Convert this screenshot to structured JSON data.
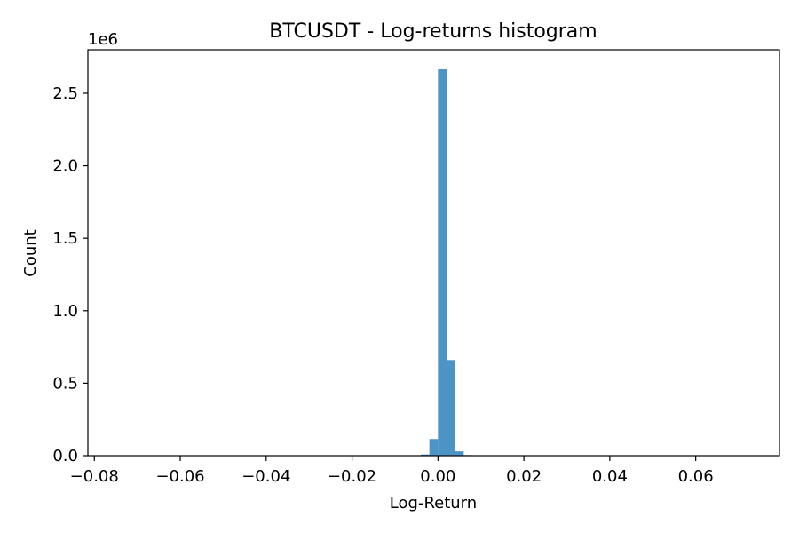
{
  "chart_data": {
    "type": "bar",
    "title": "BTCUSDT - Log-returns histogram",
    "xlabel": "Log-Return",
    "ylabel": "Count",
    "y_offset_label": "1e6",
    "xlim": [
      -0.0815,
      0.0795
    ],
    "ylim": [
      0,
      2.8
    ],
    "xticks": [
      -0.08,
      -0.06,
      -0.04,
      -0.02,
      0.0,
      0.02,
      0.04,
      0.06
    ],
    "xtick_labels": [
      "−0.08",
      "−0.06",
      "−0.04",
      "−0.02",
      "0.00",
      "0.02",
      "0.04",
      "0.06"
    ],
    "yticks": [
      0.0,
      0.5,
      1.0,
      1.5,
      2.0,
      2.5
    ],
    "ytick_labels": [
      "0.0",
      "0.5",
      "1.0",
      "1.5",
      "2.0",
      "2.5"
    ],
    "bin_width": 0.002,
    "bins": [
      {
        "left": -0.004,
        "count": 0.008
      },
      {
        "left": -0.002,
        "count": 0.115
      },
      {
        "left": 0.0,
        "count": 2.665
      },
      {
        "left": 0.002,
        "count": 0.66
      },
      {
        "left": 0.004,
        "count": 0.03
      },
      {
        "left": 0.006,
        "count": 0.004
      }
    ],
    "bar_color": "#4c93c6",
    "grid": false,
    "legend": "none"
  }
}
